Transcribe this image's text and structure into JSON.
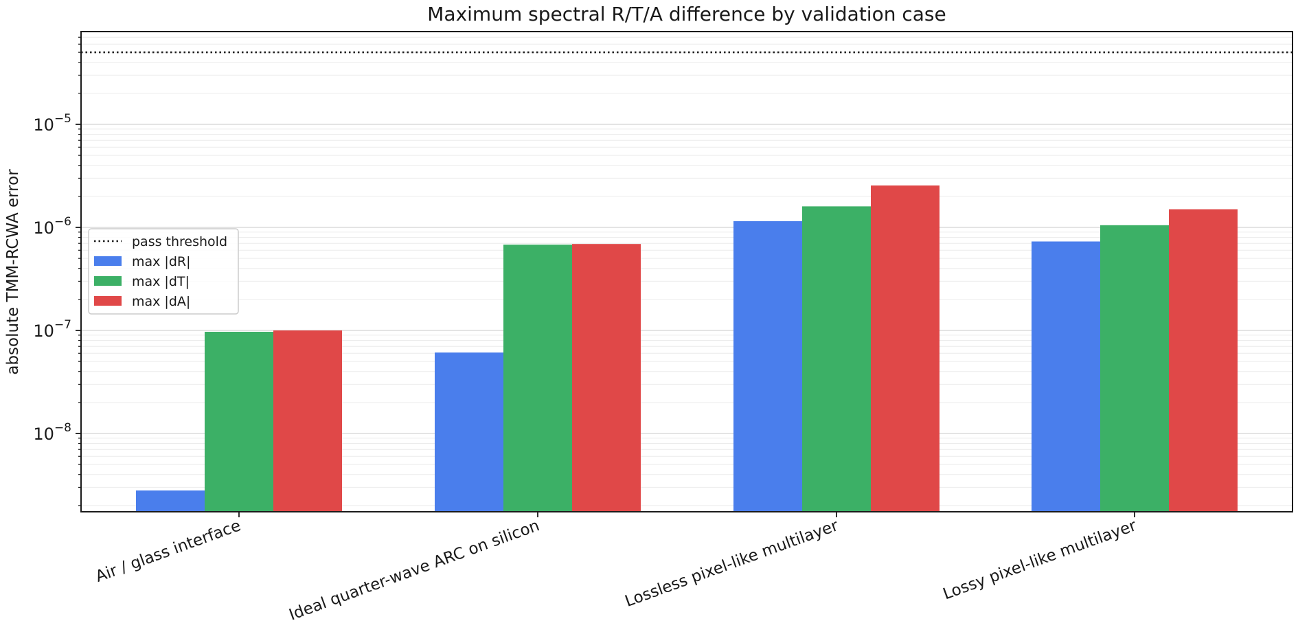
{
  "chart_data": {
    "type": "bar",
    "title": "Maximum spectral R/T/A difference by validation case",
    "xlabel": "",
    "ylabel": "absolute TMM-RCWA error",
    "yscale": "log",
    "ylim": [
      1.7e-09,
      0.0008
    ],
    "ytick_labels": [
      {
        "value": 1e-08,
        "base": "10",
        "exp": "−8"
      },
      {
        "value": 1e-07,
        "base": "10",
        "exp": "−7"
      },
      {
        "value": 1e-06,
        "base": "10",
        "exp": "−6"
      },
      {
        "value": 1e-05,
        "base": "10",
        "exp": "−5"
      }
    ],
    "grid": "y-major-and-minor",
    "legend_position": "center-left",
    "categories": [
      "Air / glass interface",
      "Ideal quarter-wave ARC on silicon",
      "Lossless pixel-like multilayer",
      "Lossy pixel-like multilayer"
    ],
    "series": [
      {
        "name": "max |dR|",
        "color": "#4a7eec",
        "values": [
          2.8e-09,
          6.1e-08,
          1.15e-06,
          7.3e-07
        ]
      },
      {
        "name": "max |dT|",
        "color": "#3cb066",
        "values": [
          9.7e-08,
          6.8e-07,
          1.6e-06,
          1.05e-06
        ]
      },
      {
        "name": "max |dA|",
        "color": "#e04848",
        "values": [
          1e-07,
          6.9e-07,
          2.55e-06,
          1.5e-06
        ]
      }
    ],
    "threshold": {
      "name": "pass threshold",
      "value": 5e-05,
      "style": "dotted",
      "color": "#1a1a1a"
    }
  }
}
